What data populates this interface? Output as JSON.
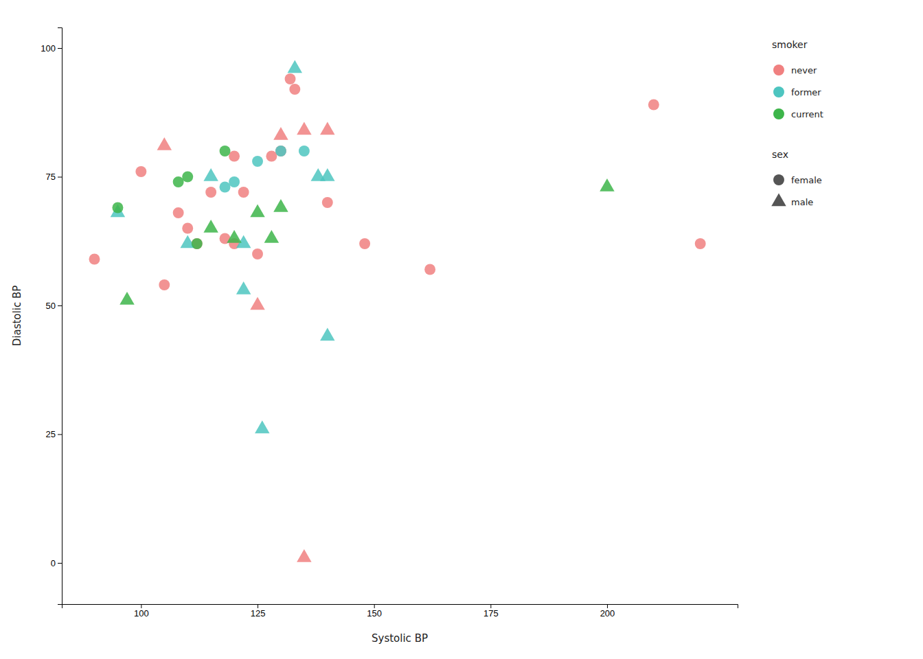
{
  "chart_data": {
    "type": "scatter",
    "xlabel": "Systolic BP",
    "ylabel": "Diastolic BP",
    "xlim": [
      83,
      228
    ],
    "ylim": [
      -8,
      104
    ],
    "xticks": [
      100,
      125,
      150,
      175,
      200
    ],
    "yticks": [
      0,
      25,
      50,
      75,
      100
    ],
    "grid": false,
    "legend_title": "smoker",
    "series": [
      {
        "name": "never",
        "color": "#F08080",
        "x": [
          90,
          100,
          105,
          105,
          108,
          110,
          112,
          115,
          118,
          120,
          120,
          122,
          125,
          125,
          128,
          130,
          130,
          132,
          133,
          135,
          140,
          140,
          148,
          162,
          210,
          220,
          135
        ],
        "y": [
          59,
          76,
          81,
          54,
          68,
          65,
          62,
          72,
          63,
          62,
          79,
          72,
          60,
          50,
          79,
          80,
          83,
          94,
          92,
          84,
          84,
          70,
          62,
          57,
          89,
          62,
          1
        ],
        "sex": [
          "female",
          "female",
          "male",
          "female",
          "female",
          "female",
          "female",
          "female",
          "female",
          "female",
          "female",
          "female",
          "female",
          "male",
          "female",
          "female",
          "male",
          "female",
          "female",
          "male",
          "male",
          "female",
          "female",
          "female",
          "female",
          "female",
          "male"
        ]
      },
      {
        "name": "former",
        "color": "#4DC5C0",
        "x": [
          95,
          110,
          115,
          118,
          120,
          122,
          122,
          125,
          126,
          130,
          133,
          135,
          138,
          140,
          140
        ],
        "y": [
          68,
          62,
          75,
          73,
          74,
          62,
          53,
          78,
          26,
          80,
          96,
          80,
          75,
          75,
          44
        ],
        "sex": [
          "male",
          "male",
          "male",
          "female",
          "female",
          "male",
          "male",
          "female",
          "male",
          "female",
          "male",
          "female",
          "male",
          "male",
          "male"
        ]
      },
      {
        "name": "current",
        "color": "#3DB54A",
        "x": [
          95,
          97,
          108,
          110,
          112,
          115,
          118,
          120,
          125,
          128,
          130,
          200
        ],
        "y": [
          69,
          51,
          74,
          75,
          62,
          65,
          80,
          63,
          68,
          63,
          69,
          73
        ],
        "sex": [
          "female",
          "male",
          "female",
          "female",
          "female",
          "male",
          "female",
          "male",
          "male",
          "male",
          "male",
          "male"
        ]
      }
    ],
    "marker_legend": {
      "title": "sex",
      "color": "#555555",
      "entries": [
        {
          "name": "female",
          "marker": "circle"
        },
        {
          "name": "male",
          "marker": "triangle"
        }
      ]
    }
  }
}
